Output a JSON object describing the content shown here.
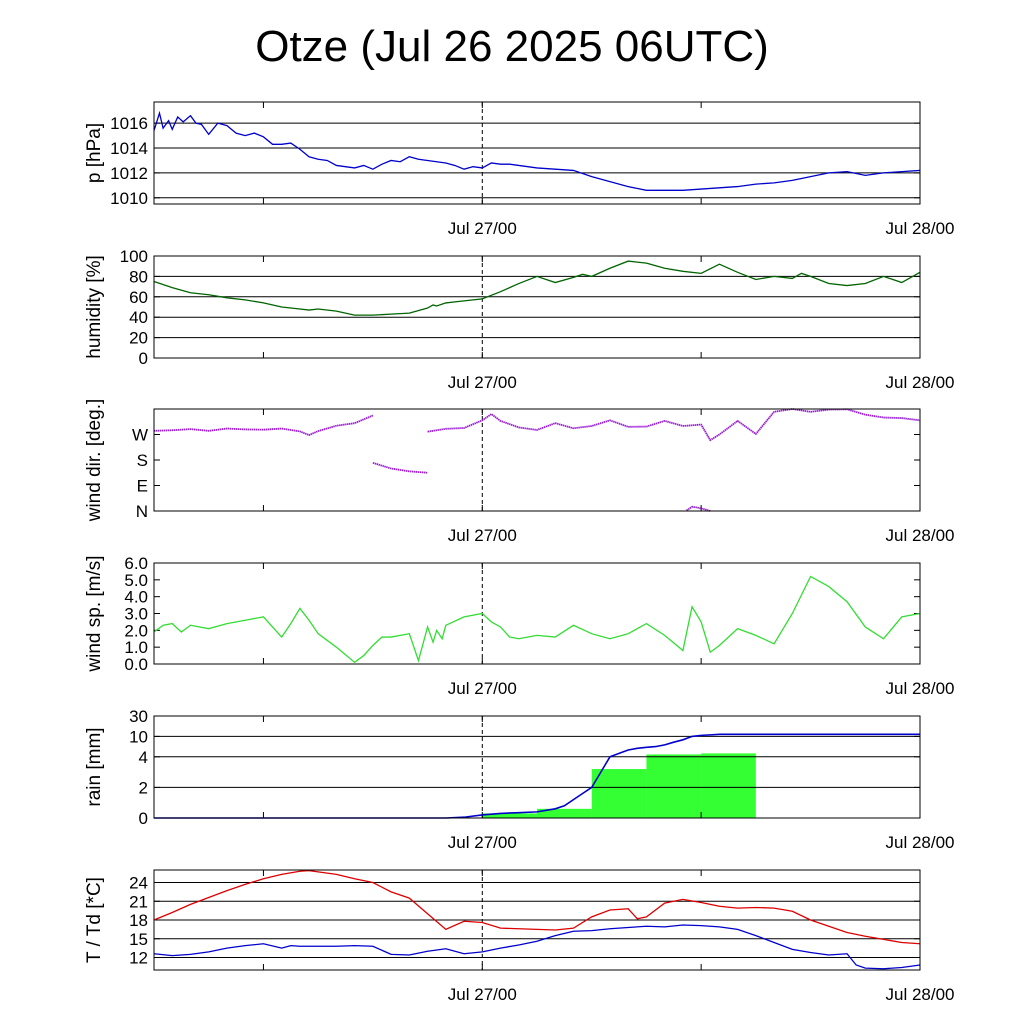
{
  "title": "Otze (Jul 26 2025 06UTC)",
  "colors": {
    "pressure": "#0000cc",
    "humidity": "#006400",
    "wind_dir": "#9a1fd0",
    "wind_speed": "#33dd33",
    "rain_bar": "#33ff33",
    "rain_sum": "#0000cc",
    "temperature": "#dd0000",
    "dewpoint": "#0000cc"
  },
  "chart_data": [
    {
      "type": "line",
      "ylabel": "p [hPa]",
      "xticks": [
        "Jul 27/00",
        "Jul 28/00"
      ],
      "yticks": [
        "1010",
        "1012",
        "1014",
        "1016"
      ],
      "ylim": [
        1009.5,
        1017.7
      ],
      "grid": true,
      "series": [
        {
          "x": [
            0,
            0.3,
            0.5,
            0.8,
            1,
            1.3,
            1.6,
            2,
            2.3,
            2.6,
            3,
            3.5,
            4,
            4.5,
            5,
            5.5,
            6,
            6.5,
            7,
            7.5,
            8,
            8.5,
            9,
            9.5,
            10,
            10.5,
            11,
            11.5,
            12,
            12.5,
            13,
            13.5,
            14,
            14.5,
            15,
            15.5,
            16,
            16.5,
            17,
            17.5,
            18,
            18.5,
            19,
            19.5,
            20,
            21,
            22,
            23,
            24,
            25,
            26,
            27,
            28,
            29,
            30,
            31,
            32,
            33,
            34,
            35,
            36,
            37,
            38,
            39,
            40,
            41,
            42
          ],
          "y": [
            1015.4,
            1016.8,
            1015.6,
            1016.2,
            1015.5,
            1016.5,
            1016.1,
            1016.6,
            1016.0,
            1015.9,
            1015.1,
            1016.0,
            1015.8,
            1015.2,
            1015.0,
            1015.2,
            1014.9,
            1014.3,
            1014.3,
            1014.4,
            1013.9,
            1013.3,
            1013.1,
            1013.0,
            1012.6,
            1012.5,
            1012.4,
            1012.6,
            1012.3,
            1012.7,
            1013.0,
            1012.9,
            1013.3,
            1013.1,
            1013.0,
            1012.9,
            1012.8,
            1012.6,
            1012.3,
            1012.5,
            1012.4,
            1012.8,
            1012.7,
            1012.7,
            1012.6,
            1012.4,
            1012.3,
            1012.2,
            1011.7,
            1011.3,
            1010.9,
            1010.6,
            1010.6,
            1010.6,
            1010.7,
            1010.8,
            1010.9,
            1011.1,
            1011.2,
            1011.4,
            1011.7,
            1012.0,
            1012.1,
            1011.8,
            1012.0,
            1012.1,
            1012.2
          ]
        }
      ]
    },
    {
      "type": "line",
      "ylabel": "humidity [%]",
      "xticks": [
        "Jul 27/00",
        "Jul 28/00"
      ],
      "yticks": [
        "0",
        "20",
        "40",
        "60",
        "80",
        "100"
      ],
      "ylim": [
        0,
        100
      ],
      "grid": true,
      "series": [
        {
          "x": [
            0,
            1,
            2,
            3,
            4,
            5,
            6,
            7,
            8,
            8.5,
            9,
            10,
            11,
            12,
            13,
            14,
            15,
            15.3,
            15.5,
            16,
            16.5,
            17,
            18,
            19,
            20,
            21,
            22,
            23,
            23.5,
            24,
            25,
            26,
            27,
            28,
            29,
            30,
            31,
            32,
            33,
            34,
            35,
            35.5,
            36,
            37,
            38,
            39,
            40,
            41,
            42
          ],
          "y": [
            75,
            69,
            64,
            62,
            59,
            57,
            54,
            50,
            48,
            47,
            48,
            46,
            42,
            42,
            43,
            44,
            49,
            52,
            51,
            54,
            55,
            56,
            58,
            65,
            73,
            80,
            74,
            79,
            82,
            80,
            88,
            95,
            93,
            88,
            85,
            83,
            92,
            84,
            77,
            80,
            78,
            83,
            80,
            73,
            71,
            73,
            80,
            74,
            84
          ]
        }
      ]
    },
    {
      "type": "scatter",
      "ylabel": "wind dir. [deg.]",
      "xticks": [
        "Jul 27/00",
        "Jul 28/00"
      ],
      "yticks": [
        "N",
        "E",
        "S",
        "W"
      ],
      "ylim": [
        0,
        360
      ],
      "grid": false,
      "series": [
        {
          "x": [
            0,
            1,
            2,
            3,
            4,
            5,
            6,
            7,
            8,
            8.5,
            9,
            10,
            11,
            12
          ],
          "y": [
            283,
            285,
            289,
            283,
            291,
            288,
            287,
            291,
            281,
            268,
            282,
            301,
            310,
            337
          ]
        },
        {
          "x": [
            12,
            13,
            14,
            15
          ],
          "y": [
            170,
            150,
            140,
            135
          ]
        },
        {
          "x": [
            15,
            16,
            17,
            18,
            18.5,
            19,
            20,
            21,
            22,
            23,
            24,
            25,
            26,
            27,
            28,
            29,
            30,
            30.5,
            31,
            32,
            33,
            34,
            35,
            36,
            37,
            38,
            39,
            40,
            41,
            42
          ],
          "y": [
            280,
            290,
            293,
            320,
            342,
            318,
            295,
            286,
            310,
            292,
            300,
            320,
            297,
            298,
            318,
            300,
            305,
            250,
            270,
            318,
            272,
            350,
            362,
            350,
            358,
            359,
            340,
            330,
            328,
            320
          ]
        },
        {
          "x": [
            29.2,
            29.5,
            29.8,
            30.2,
            30.5
          ],
          "y": [
            2,
            15,
            12,
            6,
            0
          ]
        }
      ]
    },
    {
      "type": "line",
      "ylabel": "wind sp. [m/s]",
      "xticks": [
        "Jul 27/00",
        "Jul 28/00"
      ],
      "yticks": [
        "0.0",
        "1.0",
        "2.0",
        "3.0",
        "4.0",
        "5.0",
        "6.0"
      ],
      "ylim": [
        0,
        6
      ],
      "grid": false,
      "series": [
        {
          "x": [
            0,
            0.5,
            1,
            1.5,
            2,
            3,
            4,
            5,
            6,
            7,
            7.5,
            8,
            8.5,
            9,
            10,
            11,
            11.5,
            12,
            12.5,
            13,
            14,
            14.5,
            15,
            15.3,
            15.5,
            15.8,
            16,
            17,
            18,
            18.5,
            19,
            19.5,
            20,
            21,
            22,
            23,
            24,
            25,
            26,
            27,
            28,
            29,
            29.5,
            30,
            30.5,
            31,
            32,
            33,
            34,
            35,
            36,
            37,
            38,
            39,
            40,
            41,
            42
          ],
          "y": [
            1.9,
            2.3,
            2.4,
            1.9,
            2.3,
            2.1,
            2.4,
            2.6,
            2.8,
            1.6,
            2.4,
            3.3,
            2.6,
            1.8,
            1.0,
            0.1,
            0.5,
            1.1,
            1.6,
            1.6,
            1.8,
            0.2,
            2.2,
            1.3,
            2.0,
            1.5,
            2.3,
            2.8,
            3.0,
            2.5,
            2.2,
            1.6,
            1.5,
            1.7,
            1.6,
            2.3,
            1.8,
            1.5,
            1.8,
            2.4,
            1.7,
            0.8,
            3.4,
            2.5,
            0.7,
            1.1,
            2.1,
            1.7,
            1.2,
            3.0,
            5.2,
            4.6,
            3.7,
            2.2,
            1.5,
            2.8,
            3.0
          ]
        }
      ]
    },
    {
      "type": "bar",
      "ylabel": "rain [mm]",
      "xticks": [
        "Jul 27/00",
        "Jul 28/00"
      ],
      "yticks": [
        "0",
        "2",
        "4",
        "10",
        "30"
      ],
      "ylim": [
        0,
        30
      ],
      "grid": true,
      "bars": [
        {
          "x_start": 18,
          "x_end": 21,
          "value": 0.3
        },
        {
          "x_start": 21,
          "x_end": 24,
          "value": 0.6
        },
        {
          "x_start": 24,
          "x_end": 27,
          "value": 3.2
        },
        {
          "x_start": 27,
          "x_end": 30,
          "value": 4.7
        },
        {
          "x_start": 30,
          "x_end": 33,
          "value": 5.0
        }
      ],
      "cumulative": {
        "x": [
          0,
          15,
          16,
          17,
          18,
          19,
          20,
          21,
          22,
          22.5,
          23,
          23.5,
          24,
          24.5,
          25,
          25.5,
          26,
          26.5,
          27,
          27.5,
          28,
          28.5,
          29,
          29.5,
          30,
          30.5,
          31,
          32,
          33,
          42
        ],
        "y": [
          0,
          0,
          0,
          0.05,
          0.2,
          0.3,
          0.35,
          0.4,
          0.6,
          0.8,
          1.2,
          1.6,
          2.0,
          3.0,
          4.0,
          5.0,
          6.0,
          6.5,
          6.8,
          7.0,
          7.5,
          8.3,
          9.0,
          10.0,
          11.0,
          11.5,
          12.0,
          12.0,
          12.0,
          12.0
        ]
      }
    },
    {
      "type": "line",
      "ylabel": "T / Td [*C]",
      "xticks": [
        "Jul 27/00",
        "Jul 28/00"
      ],
      "yticks": [
        "12",
        "15",
        "18",
        "21",
        "24"
      ],
      "ylim": [
        10,
        26
      ],
      "grid": true,
      "series": [
        {
          "x": [
            0,
            1,
            2,
            3,
            4,
            5,
            6,
            7,
            8,
            8.5,
            9,
            10,
            11,
            12,
            13,
            14,
            15,
            16,
            17,
            18,
            19,
            20,
            21,
            22,
            23,
            24,
            25,
            26,
            26.5,
            27,
            28,
            29,
            30,
            31,
            32,
            33,
            34,
            35,
            36,
            37,
            38,
            39,
            40,
            41,
            42
          ],
          "y": [
            18.0,
            19.2,
            20.5,
            21.6,
            22.7,
            23.7,
            24.6,
            25.3,
            25.8,
            25.9,
            25.7,
            25.3,
            24.6,
            24.0,
            22.5,
            21.5,
            19.0,
            16.5,
            17.8,
            17.6,
            16.7,
            16.6,
            16.5,
            16.4,
            16.7,
            18.5,
            19.6,
            19.8,
            18.2,
            18.5,
            20.7,
            21.3,
            20.8,
            20.2,
            19.9,
            20.0,
            19.9,
            19.4,
            18.0,
            17.0,
            16.0,
            15.4,
            14.9,
            14.4,
            14.2
          ]
        },
        {
          "x": [
            0,
            1,
            2,
            3,
            4,
            5,
            6,
            7,
            7.5,
            8,
            9,
            10,
            11,
            12,
            13,
            14,
            15,
            16,
            17,
            18,
            19,
            20,
            21,
            22,
            23,
            24,
            25,
            26,
            27,
            28,
            29,
            30,
            31,
            32,
            33,
            34,
            35,
            36,
            37,
            38,
            38.5,
            39,
            40,
            41,
            42
          ],
          "y": [
            12.6,
            12.3,
            12.5,
            12.9,
            13.5,
            13.9,
            14.2,
            13.5,
            13.9,
            13.8,
            13.8,
            13.8,
            13.9,
            13.8,
            12.5,
            12.4,
            13.0,
            13.4,
            12.6,
            12.9,
            13.5,
            14.0,
            14.6,
            15.5,
            16.2,
            16.3,
            16.6,
            16.8,
            17.0,
            16.9,
            17.2,
            17.1,
            16.9,
            16.5,
            15.5,
            14.4,
            13.3,
            12.8,
            12.4,
            12.6,
            10.8,
            10.3,
            10.2,
            10.4,
            10.8
          ]
        }
      ]
    }
  ]
}
